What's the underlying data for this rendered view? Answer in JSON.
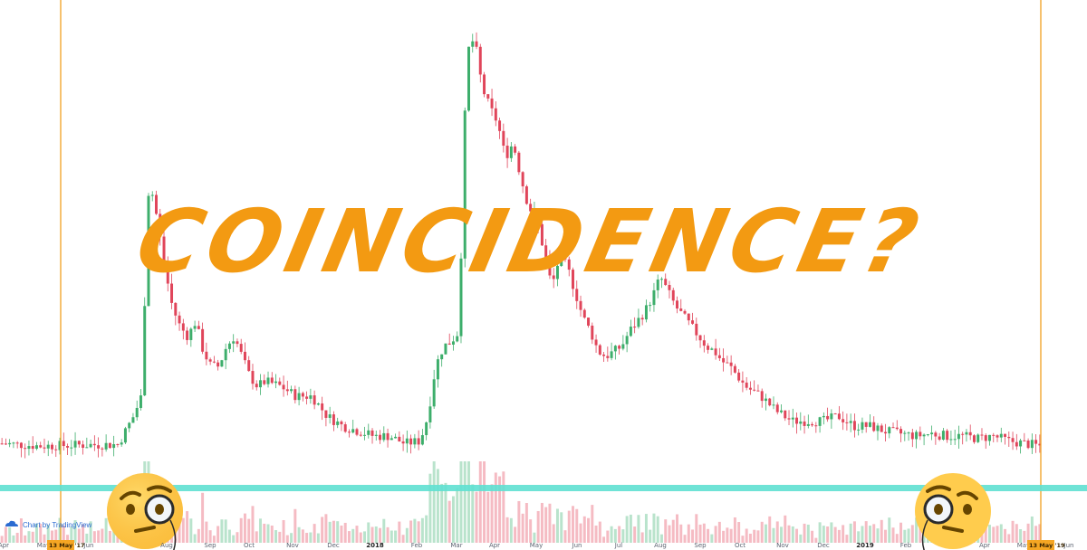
{
  "chart_data": {
    "type": "candlestick",
    "overlay_text": "COINCIDENCE?",
    "attribution": "Chart by TradingView",
    "x_ticks": [
      "Apr",
      "May",
      "Jun",
      "Aug",
      "Sep",
      "Oct",
      "Nov",
      "Dec",
      "2018",
      "Feb",
      "Mar",
      "Apr",
      "May",
      "Jun",
      "Jul",
      "Aug",
      "Sep",
      "Oct",
      "Nov",
      "Dec",
      "2019",
      "Feb",
      "Apr",
      "May",
      "Jun"
    ],
    "bold_ticks": [
      "2018",
      "2019"
    ],
    "markers": [
      {
        "label": "13 May '17"
      },
      {
        "label": "13 May '19"
      }
    ],
    "horizontal_line_level": 0.135,
    "emojis": [
      {
        "name": "face-with-monocle"
      },
      {
        "name": "face-with-monocle"
      }
    ],
    "colors": {
      "up": "#3dae6b",
      "down": "#e0455a",
      "vertical_line": "#f0a020",
      "horizontal_line": "#5fe0d2",
      "headline": "#f39a12",
      "marker_bg": "#f5a623"
    },
    "price_path": [
      [
        0,
        0.145
      ],
      [
        10,
        0.14
      ],
      [
        20,
        0.142
      ],
      [
        30,
        0.143
      ],
      [
        34,
        0.2
      ],
      [
        35,
        0.22
      ],
      [
        36,
        0.24
      ],
      [
        38,
        0.68
      ],
      [
        40,
        0.6
      ],
      [
        42,
        0.5
      ],
      [
        44,
        0.42
      ],
      [
        46,
        0.38
      ],
      [
        48,
        0.36
      ],
      [
        50,
        0.39
      ],
      [
        52,
        0.33
      ],
      [
        54,
        0.3
      ],
      [
        56,
        0.3
      ],
      [
        58,
        0.34
      ],
      [
        60,
        0.36
      ],
      [
        62,
        0.32
      ],
      [
        64,
        0.28
      ],
      [
        66,
        0.26
      ],
      [
        68,
        0.27
      ],
      [
        72,
        0.26
      ],
      [
        76,
        0.24
      ],
      [
        80,
        0.24
      ],
      [
        84,
        0.2
      ],
      [
        88,
        0.18
      ],
      [
        92,
        0.17
      ],
      [
        96,
        0.16
      ],
      [
        100,
        0.16
      ],
      [
        104,
        0.145
      ],
      [
        108,
        0.15
      ],
      [
        110,
        0.2
      ],
      [
        112,
        0.3
      ],
      [
        114,
        0.34
      ],
      [
        116,
        0.35
      ],
      [
        118,
        0.37
      ],
      [
        120,
        0.93
      ],
      [
        122,
        0.96
      ],
      [
        124,
        0.86
      ],
      [
        126,
        0.82
      ],
      [
        128,
        0.79
      ],
      [
        130,
        0.72
      ],
      [
        132,
        0.75
      ],
      [
        134,
        0.68
      ],
      [
        136,
        0.62
      ],
      [
        138,
        0.6
      ],
      [
        140,
        0.53
      ],
      [
        142,
        0.46
      ],
      [
        144,
        0.52
      ],
      [
        146,
        0.5
      ],
      [
        148,
        0.45
      ],
      [
        150,
        0.4
      ],
      [
        152,
        0.37
      ],
      [
        154,
        0.33
      ],
      [
        156,
        0.32
      ],
      [
        158,
        0.33
      ],
      [
        160,
        0.34
      ],
      [
        162,
        0.37
      ],
      [
        164,
        0.39
      ],
      [
        166,
        0.41
      ],
      [
        168,
        0.44
      ],
      [
        170,
        0.48
      ],
      [
        172,
        0.45
      ],
      [
        174,
        0.42
      ],
      [
        176,
        0.4
      ],
      [
        178,
        0.38
      ],
      [
        180,
        0.36
      ],
      [
        182,
        0.34
      ],
      [
        184,
        0.33
      ],
      [
        186,
        0.31
      ],
      [
        188,
        0.3
      ],
      [
        190,
        0.28
      ],
      [
        192,
        0.26
      ],
      [
        196,
        0.24
      ],
      [
        200,
        0.21
      ],
      [
        204,
        0.19
      ],
      [
        208,
        0.19
      ],
      [
        212,
        0.19
      ],
      [
        216,
        0.2
      ],
      [
        220,
        0.18
      ],
      [
        224,
        0.18
      ],
      [
        228,
        0.17
      ],
      [
        232,
        0.165
      ],
      [
        236,
        0.16
      ],
      [
        240,
        0.165
      ],
      [
        244,
        0.16
      ],
      [
        248,
        0.16
      ],
      [
        252,
        0.155
      ],
      [
        256,
        0.16
      ],
      [
        260,
        0.15
      ],
      [
        264,
        0.145
      ],
      [
        268,
        0.14
      ]
    ]
  }
}
